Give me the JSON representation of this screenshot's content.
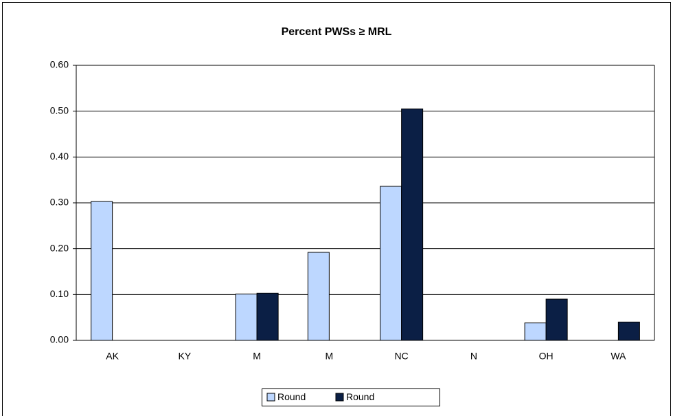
{
  "chart_data": {
    "type": "bar",
    "title": "Percent PWSs ≥ MRL",
    "categories": [
      "AK",
      "KY",
      "M",
      "M",
      "NC",
      "N",
      "OH",
      "WA"
    ],
    "series": [
      {
        "name": "Round",
        "color": "#bdd7ff",
        "values": [
          0.303,
          0,
          0.101,
          0.192,
          0.336,
          0,
          0.038,
          0
        ]
      },
      {
        "name": "Round",
        "color": "#0b1f45",
        "values": [
          0,
          0,
          0.103,
          0,
          0.505,
          0,
          0.09,
          0.04
        ]
      }
    ],
    "ylim": [
      0,
      0.6
    ],
    "yticks": [
      {
        "value": 0,
        "label": "0.00"
      },
      {
        "value": 0.1,
        "label": "0.10"
      },
      {
        "value": 0.2,
        "label": "0.20"
      },
      {
        "value": 0.3,
        "label": "0.30"
      },
      {
        "value": 0.4,
        "label": "0.40"
      },
      {
        "value": 0.5,
        "label": "0.50"
      },
      {
        "value": 0.6,
        "label": "0.60"
      }
    ],
    "grid": true,
    "legend": "bottom"
  }
}
